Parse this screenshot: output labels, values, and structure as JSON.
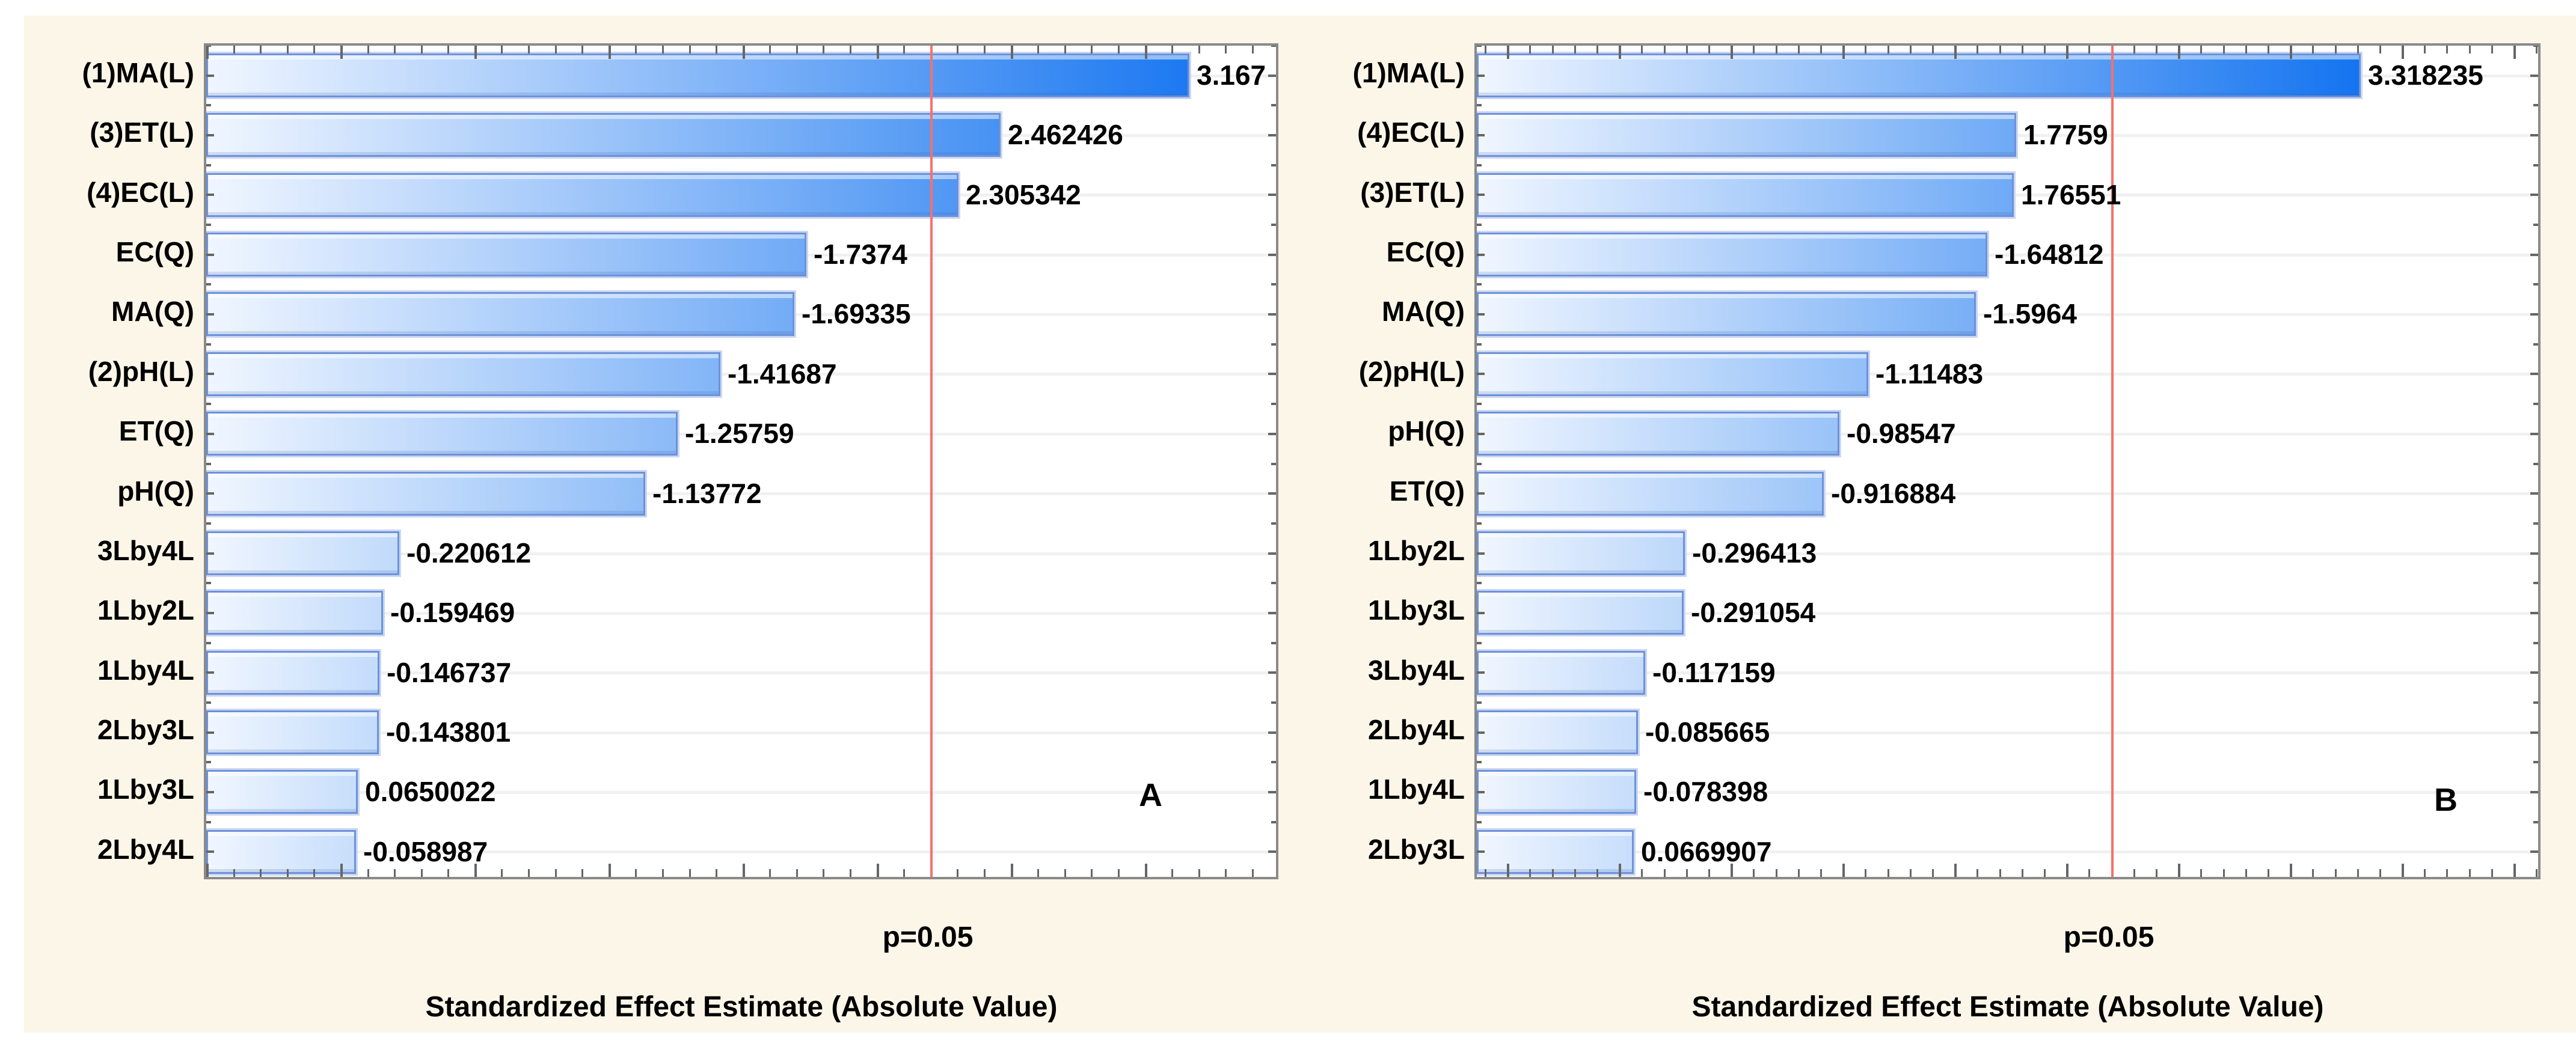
{
  "chart_data": [
    {
      "type": "bar",
      "orientation": "horizontal",
      "title": "",
      "corner_label": "A",
      "categories": [
        "(1)MA(L)",
        "(3)ET(L)",
        "(4)EC(L)",
        "EC(Q)",
        "MA(Q)",
        "(2)pH(L)",
        "ET(Q)",
        "pH(Q)",
        "3Lby4L",
        "1Lby2L",
        "1Lby4L",
        "2Lby3L",
        "1Lby3L",
        "2Lby4L"
      ],
      "values": [
        3.167,
        2.462426,
        2.305342,
        -1.7374,
        -1.69335,
        -1.41687,
        -1.25759,
        -1.13772,
        -0.220612,
        -0.159469,
        -0.146737,
        -0.143801,
        0.0650022,
        -0.058987
      ],
      "value_labels": [
        "3.167",
        "2.462426",
        "2.305342",
        "-1.7374",
        "-1.69335",
        "-1.41687",
        "-1.25759",
        "-1.13772",
        "-0.220612",
        "-0.159469",
        "-0.146737",
        "-0.143801",
        "0.0650022",
        "-0.058987"
      ],
      "xlabel": "Standardized Effect Estimate (Absolute Value)",
      "p_line": {
        "label": "p=0.05",
        "value": 2.2
      },
      "xlim": [
        -0.5,
        3.49
      ],
      "grid": "horizontal-category-lines",
      "legend": "none"
    },
    {
      "type": "bar",
      "orientation": "horizontal",
      "title": "",
      "corner_label": "B",
      "categories": [
        "(1)MA(L)",
        "(4)EC(L)",
        "(3)ET(L)",
        "EC(Q)",
        "MA(Q)",
        "(2)pH(L)",
        "pH(Q)",
        "ET(Q)",
        "1Lby2L",
        "1Lby3L",
        "3Lby4L",
        "2Lby4L",
        "1Lby4L",
        "2Lby3L"
      ],
      "values": [
        3.318235,
        1.7759,
        1.76551,
        -1.64812,
        -1.5964,
        -1.11483,
        -0.98547,
        -0.916884,
        -0.296413,
        -0.291054,
        -0.117159,
        -0.085665,
        -0.078398,
        0.0669907
      ],
      "value_labels": [
        "3.318235",
        "1.7759",
        "1.76551",
        "-1.64812",
        "-1.5964",
        "-1.11483",
        "-0.98547",
        "-0.916884",
        "-0.296413",
        "-0.291054",
        "-0.117159",
        "-0.085665",
        "-0.078398",
        "0.0669907"
      ],
      "xlabel": "Standardized Effect Estimate (Absolute Value)",
      "p_line": {
        "label": "p=0.05",
        "value": 2.2
      },
      "xlim": [
        -0.635,
        4.11
      ],
      "grid": "horizontal-category-lines",
      "legend": "none"
    }
  ],
  "colors": {
    "page_background": "#FFFFFF",
    "panel_background": "#FBF6E8",
    "plot_background": "#FFFFFF",
    "plot_border": "#8A8A8A",
    "gridline": "#F1F1F1",
    "significance_line": "#F4716B",
    "bar_border": "#6C92DA",
    "bar_outer_glow": "#CBD6F1",
    "bar_fill_light": "#F0F6FF",
    "bar_fill_pale_end": "#C9DFFB",
    "bar_fill_deep_end": "#1474F0",
    "text": "#000000"
  }
}
